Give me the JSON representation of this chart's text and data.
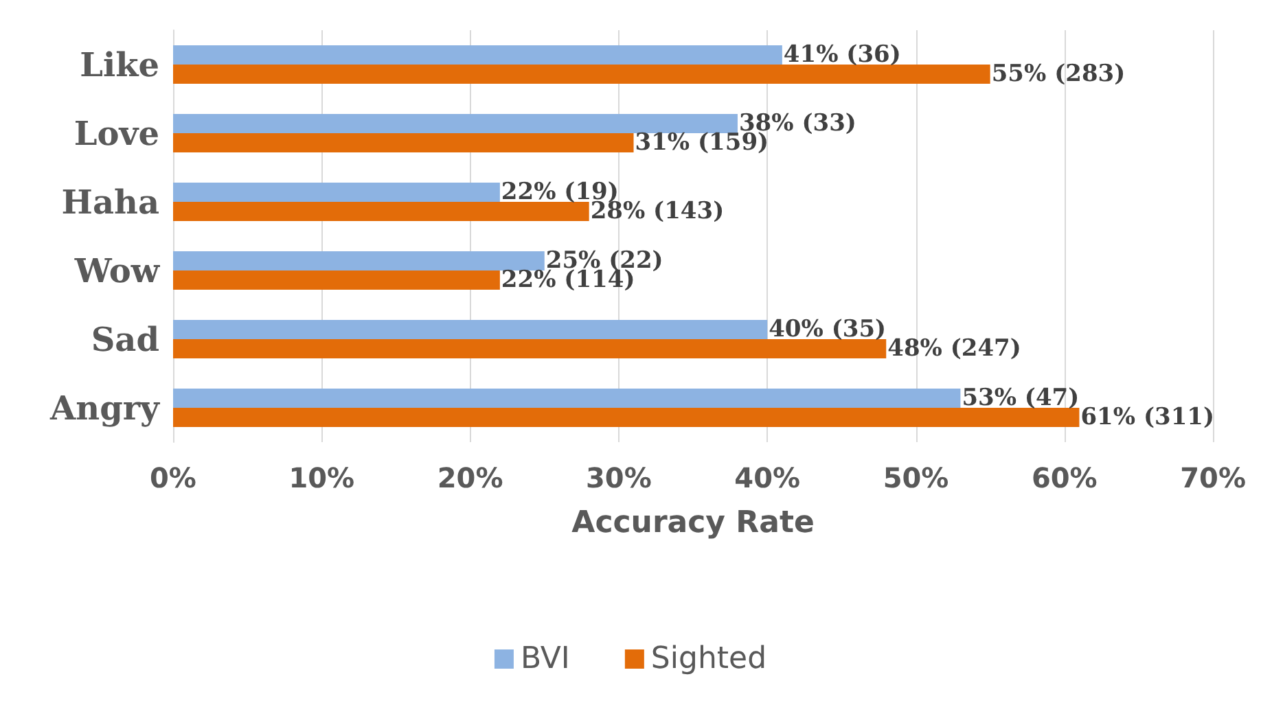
{
  "chart_data": {
    "type": "bar",
    "orientation": "horizontal",
    "xlabel": "Accuracy Rate",
    "categories": [
      "Like",
      "Love",
      "Haha",
      "Wow",
      "Sad",
      "Angry"
    ],
    "series": [
      {
        "name": "BVI",
        "color": "#8db3e2",
        "values": [
          41,
          38,
          22,
          25,
          40,
          53
        ],
        "value_labels": [
          "41% (36)",
          "38% (33)",
          "22% (19)",
          "25% (22)",
          "40% (35)",
          "53% (47)"
        ]
      },
      {
        "name": "Sighted",
        "color": "#e36c09",
        "values": [
          55,
          31,
          28,
          22,
          48,
          61
        ],
        "value_labels": [
          "55% (283)",
          "31% (159)",
          "28% (143)",
          "22% (114)",
          "48% (247)",
          "61% (311)"
        ]
      }
    ],
    "xlim": [
      0,
      70
    ],
    "xticks": [
      {
        "value": 0,
        "label": "0%"
      },
      {
        "value": 10,
        "label": "10%"
      },
      {
        "value": 20,
        "label": "20%"
      },
      {
        "value": 30,
        "label": "30%"
      },
      {
        "value": 40,
        "label": "40%"
      },
      {
        "value": 50,
        "label": "50%"
      },
      {
        "value": 60,
        "label": "60%"
      },
      {
        "value": 70,
        "label": "70%"
      }
    ],
    "grid": "x",
    "legend": "bottom"
  }
}
